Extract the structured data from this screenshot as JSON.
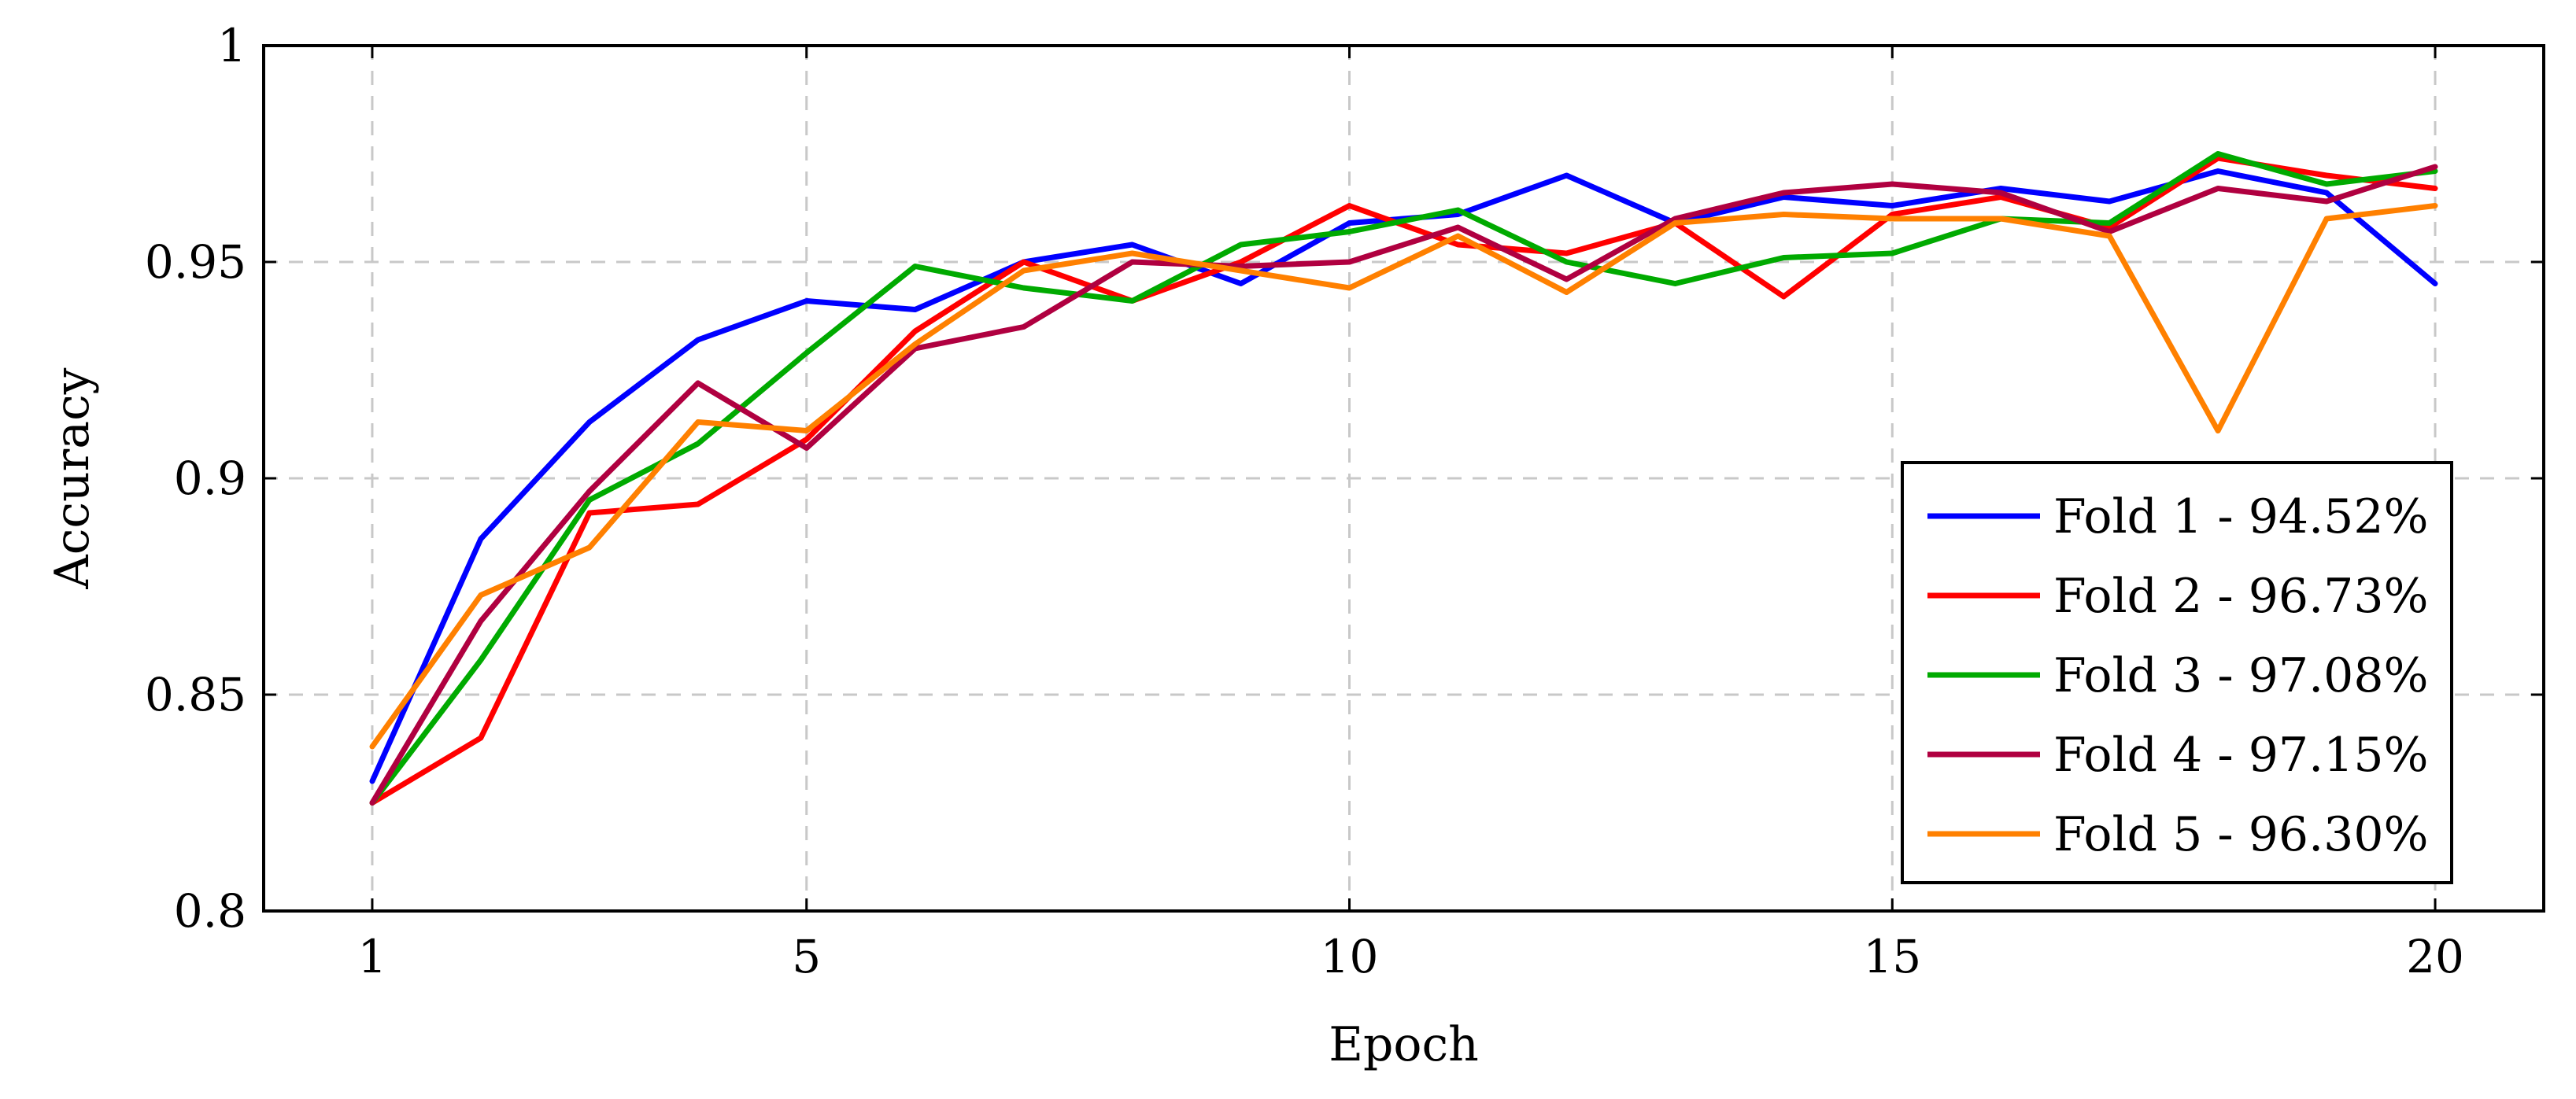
{
  "chart_data": {
    "type": "line",
    "title": "",
    "xlabel": "Epoch",
    "ylabel": "Accuracy",
    "xlim": [
      0,
      21
    ],
    "ylim": [
      0.8,
      1.0
    ],
    "xticks": [
      1,
      5,
      10,
      15,
      20
    ],
    "xtick_labels": [
      "1",
      "5",
      "10",
      "15",
      "20"
    ],
    "yticks": [
      0.8,
      0.85,
      0.9,
      0.95,
      1.0
    ],
    "ytick_labels": [
      "0.8",
      "0.85",
      "0.9",
      "0.95",
      "1"
    ],
    "grid": true,
    "legend_position": "lower-right",
    "x": [
      1,
      2,
      3,
      4,
      5,
      6,
      7,
      8,
      9,
      10,
      11,
      12,
      13,
      14,
      15,
      16,
      17,
      18,
      19,
      20
    ],
    "series": [
      {
        "name": "Fold 1 - 94.52%",
        "color": "#0000ff",
        "values": [
          0.83,
          0.886,
          0.913,
          0.932,
          0.941,
          0.939,
          0.95,
          0.954,
          0.945,
          0.959,
          0.961,
          0.97,
          0.959,
          0.965,
          0.963,
          0.967,
          0.964,
          0.971,
          0.966,
          0.945
        ]
      },
      {
        "name": "Fold 2 - 96.73%",
        "color": "#ff0000",
        "values": [
          0.825,
          0.84,
          0.892,
          0.894,
          0.909,
          0.934,
          0.95,
          0.941,
          0.95,
          0.963,
          0.954,
          0.952,
          0.959,
          0.942,
          0.961,
          0.965,
          0.958,
          0.974,
          0.97,
          0.967
        ]
      },
      {
        "name": "Fold 3 - 97.08%",
        "color": "#00aa00",
        "values": [
          0.825,
          0.858,
          0.895,
          0.908,
          0.929,
          0.949,
          0.944,
          0.941,
          0.954,
          0.957,
          0.962,
          0.95,
          0.945,
          0.951,
          0.952,
          0.96,
          0.959,
          0.975,
          0.968,
          0.971
        ]
      },
      {
        "name": "Fold 4 - 97.15%",
        "color": "#b00040",
        "values": [
          0.825,
          0.867,
          0.897,
          0.922,
          0.907,
          0.93,
          0.935,
          0.95,
          0.949,
          0.95,
          0.958,
          0.946,
          0.96,
          0.966,
          0.968,
          0.966,
          0.957,
          0.967,
          0.964,
          0.972
        ]
      },
      {
        "name": "Fold 5 - 96.30%",
        "color": "#ff8000",
        "values": [
          0.838,
          0.873,
          0.884,
          0.913,
          0.911,
          0.931,
          0.948,
          0.952,
          0.948,
          0.944,
          0.956,
          0.943,
          0.959,
          0.961,
          0.96,
          0.96,
          0.956,
          0.911,
          0.96,
          0.963
        ]
      }
    ]
  }
}
